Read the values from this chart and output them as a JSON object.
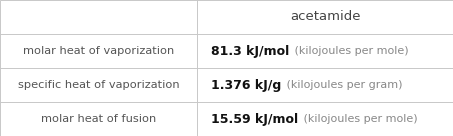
{
  "title": "acetamide",
  "rows": [
    {
      "label": "molar heat of vaporization",
      "value_bold": "81.3 kJ/mol",
      "value_light": " (kilojoules per mole)"
    },
    {
      "label": "specific heat of vaporization",
      "value_bold": "1.376 kJ/g",
      "value_light": " (kilojoules per gram)"
    },
    {
      "label": "molar heat of fusion",
      "value_bold": "15.59 kJ/mol",
      "value_light": " (kilojoules per mole)"
    }
  ],
  "bg_color": "#ffffff",
  "grid_color": "#c8c8c8",
  "label_color": "#555555",
  "value_bold_color": "#111111",
  "value_light_color": "#888888",
  "title_color": "#444444",
  "col_split": 0.435,
  "font_size_title": 9.5,
  "font_size_label": 8.2,
  "font_size_value_bold": 9.0,
  "font_size_value_light": 8.0
}
